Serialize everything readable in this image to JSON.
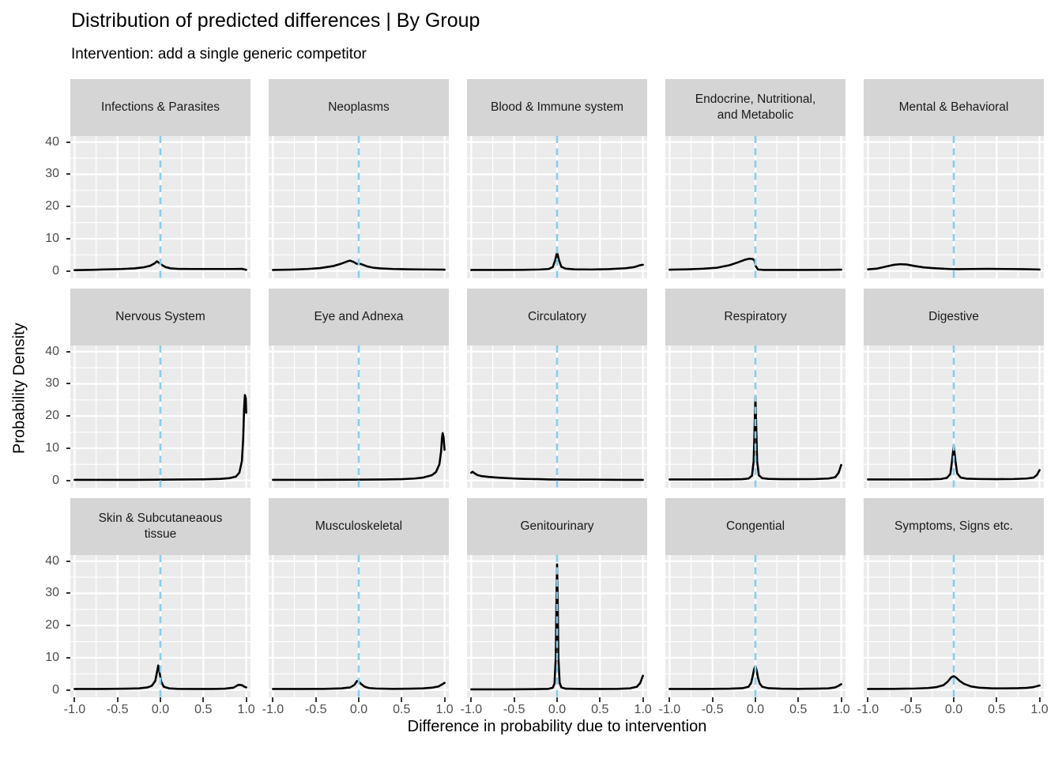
{
  "title": "Distribution of predicted differences | By Group",
  "subtitle": "Intervention: add a single generic competitor",
  "colors": {
    "panel_background": "#ebebeb",
    "strip_background": "#d5d5d5",
    "gridline": "#ffffff",
    "density_curve": "#000000",
    "reference_line": "#87ceeb",
    "tick_mark": "#333333",
    "tick_label": "#4d4d4d",
    "text": "#000000"
  },
  "chart_data": {
    "type": "line",
    "title": "Distribution of predicted differences | By Group",
    "subtitle": "Intervention: add a single generic competitor",
    "xlabel": "Difference in probability due to intervention",
    "ylabel": "Probability Density",
    "x_ticks": [
      -1.0,
      -0.5,
      0.0,
      0.5,
      1.0
    ],
    "x_tick_labels": [
      "-1.0",
      "-0.5",
      "0.0",
      "0.5",
      "1.0"
    ],
    "x_minor_ticks": [
      -0.75,
      -0.25,
      0.25,
      0.75
    ],
    "y_ticks": [
      0,
      10,
      20,
      30,
      40
    ],
    "y_tick_labels": [
      "0",
      "10",
      "20",
      "30",
      "40"
    ],
    "y_minor_ticks": [
      5,
      15,
      25,
      35
    ],
    "x_range": [
      -1.05,
      1.05
    ],
    "y_range_display": [
      -2.3,
      41.9
    ],
    "grid": {
      "major": true,
      "minor": true
    },
    "legend": "none",
    "facet_layout": {
      "rows": 3,
      "cols": 5
    },
    "reference_line": {
      "x": 0,
      "style": "dashed",
      "color": "#87ceeb"
    },
    "facets": [
      {
        "label": "Infections & Parasites",
        "curve": [
          [
            -1,
            0.25
          ],
          [
            -0.8,
            0.35
          ],
          [
            -0.6,
            0.5
          ],
          [
            -0.45,
            0.6
          ],
          [
            -0.3,
            0.8
          ],
          [
            -0.2,
            1.1
          ],
          [
            -0.12,
            1.6
          ],
          [
            -0.07,
            2.3
          ],
          [
            -0.04,
            3.0
          ],
          [
            -0.02,
            2.6
          ],
          [
            0.02,
            1.8
          ],
          [
            0.06,
            1.2
          ],
          [
            0.12,
            0.8
          ],
          [
            0.2,
            0.65
          ],
          [
            0.35,
            0.6
          ],
          [
            0.5,
            0.6
          ],
          [
            0.7,
            0.6
          ],
          [
            0.85,
            0.6
          ],
          [
            0.95,
            0.65
          ],
          [
            1,
            0.35
          ]
        ]
      },
      {
        "label": "Neoplasms",
        "curve": [
          [
            -1,
            0.3
          ],
          [
            -0.8,
            0.4
          ],
          [
            -0.6,
            0.6
          ],
          [
            -0.45,
            0.9
          ],
          [
            -0.3,
            1.5
          ],
          [
            -0.2,
            2.3
          ],
          [
            -0.13,
            3.0
          ],
          [
            -0.1,
            3.2
          ],
          [
            -0.06,
            2.8
          ],
          [
            -0.03,
            2.3
          ],
          [
            0,
            2.1
          ],
          [
            0.02,
            2.2
          ],
          [
            0.05,
            1.9
          ],
          [
            0.1,
            1.4
          ],
          [
            0.17,
            1.0
          ],
          [
            0.25,
            0.8
          ],
          [
            0.4,
            0.6
          ],
          [
            0.6,
            0.5
          ],
          [
            0.8,
            0.45
          ],
          [
            1,
            0.4
          ]
        ]
      },
      {
        "label": "Blood & Immune system",
        "curve": [
          [
            -1,
            0.3
          ],
          [
            -0.7,
            0.3
          ],
          [
            -0.4,
            0.35
          ],
          [
            -0.2,
            0.45
          ],
          [
            -0.1,
            0.6
          ],
          [
            -0.05,
            1.2
          ],
          [
            -0.02,
            3.5
          ],
          [
            0,
            5.8
          ],
          [
            0.02,
            3.5
          ],
          [
            0.05,
            1.3
          ],
          [
            0.1,
            0.7
          ],
          [
            0.2,
            0.5
          ],
          [
            0.4,
            0.45
          ],
          [
            0.6,
            0.55
          ],
          [
            0.8,
            0.85
          ],
          [
            0.9,
            1.2
          ],
          [
            0.97,
            1.8
          ],
          [
            1,
            1.9
          ]
        ]
      },
      {
        "label": "Endocrine, Nutritional,\nand Metabolic",
        "curve": [
          [
            -1,
            0.4
          ],
          [
            -0.8,
            0.5
          ],
          [
            -0.6,
            0.7
          ],
          [
            -0.45,
            1.0
          ],
          [
            -0.3,
            1.8
          ],
          [
            -0.2,
            2.7
          ],
          [
            -0.12,
            3.5
          ],
          [
            -0.07,
            3.8
          ],
          [
            -0.03,
            3.7
          ],
          [
            -0.01,
            3.2
          ],
          [
            0.005,
            1.4
          ],
          [
            0.03,
            0.45
          ],
          [
            0.1,
            0.3
          ],
          [
            0.3,
            0.3
          ],
          [
            0.6,
            0.3
          ],
          [
            0.85,
            0.35
          ],
          [
            1,
            0.4
          ]
        ]
      },
      {
        "label": "Mental & Behavioral",
        "curve": [
          [
            -1,
            0.5
          ],
          [
            -0.9,
            0.7
          ],
          [
            -0.8,
            1.3
          ],
          [
            -0.7,
            1.9
          ],
          [
            -0.62,
            2.1
          ],
          [
            -0.55,
            2.0
          ],
          [
            -0.45,
            1.5
          ],
          [
            -0.35,
            1.1
          ],
          [
            -0.25,
            0.9
          ],
          [
            -0.15,
            0.75
          ],
          [
            -0.05,
            0.6
          ],
          [
            0.05,
            0.55
          ],
          [
            0.2,
            0.6
          ],
          [
            0.4,
            0.65
          ],
          [
            0.6,
            0.6
          ],
          [
            0.8,
            0.55
          ],
          [
            1,
            0.45
          ]
        ]
      },
      {
        "label": "Nervous System",
        "curve": [
          [
            -1,
            0.2
          ],
          [
            -0.6,
            0.2
          ],
          [
            -0.3,
            0.2
          ],
          [
            0,
            0.25
          ],
          [
            0.3,
            0.3
          ],
          [
            0.5,
            0.35
          ],
          [
            0.7,
            0.5
          ],
          [
            0.8,
            0.7
          ],
          [
            0.88,
            1.2
          ],
          [
            0.92,
            2.4
          ],
          [
            0.95,
            6
          ],
          [
            0.965,
            13
          ],
          [
            0.975,
            22
          ],
          [
            0.985,
            26.5
          ],
          [
            0.995,
            25.5
          ],
          [
            1,
            21
          ]
        ]
      },
      {
        "label": "Eye and Adnexa",
        "curve": [
          [
            -1,
            0.2
          ],
          [
            -0.5,
            0.2
          ],
          [
            0,
            0.25
          ],
          [
            0.3,
            0.3
          ],
          [
            0.5,
            0.4
          ],
          [
            0.65,
            0.6
          ],
          [
            0.75,
            0.9
          ],
          [
            0.85,
            1.6
          ],
          [
            0.9,
            2.6
          ],
          [
            0.94,
            5
          ],
          [
            0.96,
            9
          ],
          [
            0.97,
            13
          ],
          [
            0.978,
            14.7
          ],
          [
            0.988,
            13.5
          ],
          [
            1,
            9.5
          ]
        ]
      },
      {
        "label": "Circulatory",
        "curve": [
          [
            -1,
            2.4
          ],
          [
            -0.985,
            2.7
          ],
          [
            -0.96,
            2.2
          ],
          [
            -0.93,
            1.7
          ],
          [
            -0.88,
            1.35
          ],
          [
            -0.8,
            1.1
          ],
          [
            -0.7,
            0.9
          ],
          [
            -0.6,
            0.75
          ],
          [
            -0.5,
            0.6
          ],
          [
            -0.4,
            0.5
          ],
          [
            -0.3,
            0.45
          ],
          [
            -0.2,
            0.4
          ],
          [
            -0.1,
            0.32
          ],
          [
            0,
            0.28
          ],
          [
            0.2,
            0.25
          ],
          [
            0.4,
            0.25
          ],
          [
            0.6,
            0.22
          ],
          [
            0.8,
            0.2
          ],
          [
            1,
            0.2
          ]
        ]
      },
      {
        "label": "Respiratory",
        "curve": [
          [
            -1,
            0.3
          ],
          [
            -0.6,
            0.3
          ],
          [
            -0.3,
            0.35
          ],
          [
            -0.15,
            0.4
          ],
          [
            -0.08,
            0.6
          ],
          [
            -0.04,
            1.5
          ],
          [
            -0.02,
            6
          ],
          [
            -0.008,
            18
          ],
          [
            0,
            26
          ],
          [
            0.008,
            18
          ],
          [
            0.02,
            6
          ],
          [
            0.04,
            1.6
          ],
          [
            0.08,
            0.7
          ],
          [
            0.15,
            0.5
          ],
          [
            0.3,
            0.4
          ],
          [
            0.5,
            0.4
          ],
          [
            0.7,
            0.45
          ],
          [
            0.85,
            0.6
          ],
          [
            0.93,
            1.0
          ],
          [
            0.97,
            2.4
          ],
          [
            1,
            4.8
          ]
        ]
      },
      {
        "label": "Digestive",
        "curve": [
          [
            -1,
            0.3
          ],
          [
            -0.6,
            0.3
          ],
          [
            -0.3,
            0.35
          ],
          [
            -0.15,
            0.45
          ],
          [
            -0.08,
            0.8
          ],
          [
            -0.04,
            2.0
          ],
          [
            -0.02,
            6.0
          ],
          [
            0,
            10.8
          ],
          [
            0.02,
            6.0
          ],
          [
            0.04,
            2.2
          ],
          [
            0.08,
            0.9
          ],
          [
            0.15,
            0.55
          ],
          [
            0.3,
            0.45
          ],
          [
            0.5,
            0.4
          ],
          [
            0.7,
            0.45
          ],
          [
            0.85,
            0.6
          ],
          [
            0.93,
            0.9
          ],
          [
            0.97,
            1.7
          ],
          [
            1,
            3.2
          ]
        ]
      },
      {
        "label": "Skin & Subcutaneaous\ntissue",
        "curve": [
          [
            -1,
            0.3
          ],
          [
            -0.7,
            0.3
          ],
          [
            -0.4,
            0.4
          ],
          [
            -0.25,
            0.5
          ],
          [
            -0.15,
            0.8
          ],
          [
            -0.1,
            1.3
          ],
          [
            -0.06,
            2.8
          ],
          [
            -0.04,
            5.5
          ],
          [
            -0.025,
            7.6
          ],
          [
            -0.01,
            5.5
          ],
          [
            0.01,
            2.5
          ],
          [
            0.04,
            1.0
          ],
          [
            0.1,
            0.5
          ],
          [
            0.2,
            0.35
          ],
          [
            0.4,
            0.3
          ],
          [
            0.6,
            0.3
          ],
          [
            0.75,
            0.4
          ],
          [
            0.85,
            0.7
          ],
          [
            0.91,
            1.6
          ],
          [
            0.95,
            1.5
          ],
          [
            0.98,
            1.0
          ],
          [
            1,
            0.8
          ]
        ]
      },
      {
        "label": "Musculoskeletal",
        "curve": [
          [
            -1,
            0.3
          ],
          [
            -0.7,
            0.3
          ],
          [
            -0.4,
            0.35
          ],
          [
            -0.2,
            0.5
          ],
          [
            -0.1,
            0.8
          ],
          [
            -0.05,
            1.6
          ],
          [
            -0.02,
            2.8
          ],
          [
            0,
            2.6
          ],
          [
            0.03,
            1.8
          ],
          [
            0.07,
            1.0
          ],
          [
            0.12,
            0.6
          ],
          [
            0.2,
            0.45
          ],
          [
            0.4,
            0.35
          ],
          [
            0.6,
            0.4
          ],
          [
            0.75,
            0.5
          ],
          [
            0.85,
            0.7
          ],
          [
            0.93,
            1.1
          ],
          [
            0.97,
            1.7
          ],
          [
            1,
            2.2
          ]
        ]
      },
      {
        "label": "Genitourinary",
        "curve": [
          [
            -1,
            0.2
          ],
          [
            -0.6,
            0.2
          ],
          [
            -0.3,
            0.25
          ],
          [
            -0.1,
            0.35
          ],
          [
            -0.05,
            0.7
          ],
          [
            -0.03,
            2.0
          ],
          [
            -0.015,
            10
          ],
          [
            -0.007,
            28
          ],
          [
            0,
            39
          ],
          [
            0.007,
            28
          ],
          [
            0.015,
            10
          ],
          [
            0.03,
            2.2
          ],
          [
            0.05,
            0.8
          ],
          [
            0.1,
            0.4
          ],
          [
            0.3,
            0.3
          ],
          [
            0.5,
            0.3
          ],
          [
            0.7,
            0.35
          ],
          [
            0.85,
            0.5
          ],
          [
            0.93,
            1.0
          ],
          [
            0.97,
            2.2
          ],
          [
            1,
            4.4
          ]
        ]
      },
      {
        "label": "Congential",
        "curve": [
          [
            -1,
            0.3
          ],
          [
            -0.6,
            0.3
          ],
          [
            -0.3,
            0.4
          ],
          [
            -0.15,
            0.55
          ],
          [
            -0.08,
            1.0
          ],
          [
            -0.05,
            2.2
          ],
          [
            -0.03,
            4.5
          ],
          [
            -0.015,
            6.5
          ],
          [
            0,
            7.4
          ],
          [
            0.015,
            6.0
          ],
          [
            0.03,
            3.8
          ],
          [
            0.05,
            2.0
          ],
          [
            0.08,
            1.0
          ],
          [
            0.15,
            0.55
          ],
          [
            0.3,
            0.4
          ],
          [
            0.5,
            0.35
          ],
          [
            0.7,
            0.4
          ],
          [
            0.85,
            0.5
          ],
          [
            0.93,
            0.8
          ],
          [
            0.97,
            1.3
          ],
          [
            1,
            1.8
          ]
        ]
      },
      {
        "label": "Symptoms, Signs etc.",
        "curve": [
          [
            -1,
            0.3
          ],
          [
            -0.7,
            0.35
          ],
          [
            -0.45,
            0.45
          ],
          [
            -0.3,
            0.6
          ],
          [
            -0.2,
            0.9
          ],
          [
            -0.12,
            1.5
          ],
          [
            -0.07,
            2.6
          ],
          [
            -0.03,
            3.9
          ],
          [
            0,
            4.3
          ],
          [
            0.03,
            3.8
          ],
          [
            0.07,
            2.8
          ],
          [
            0.12,
            1.9
          ],
          [
            0.2,
            1.1
          ],
          [
            0.3,
            0.7
          ],
          [
            0.45,
            0.5
          ],
          [
            0.6,
            0.5
          ],
          [
            0.75,
            0.55
          ],
          [
            0.85,
            0.65
          ],
          [
            0.93,
            0.9
          ],
          [
            1,
            1.4
          ]
        ]
      }
    ]
  }
}
